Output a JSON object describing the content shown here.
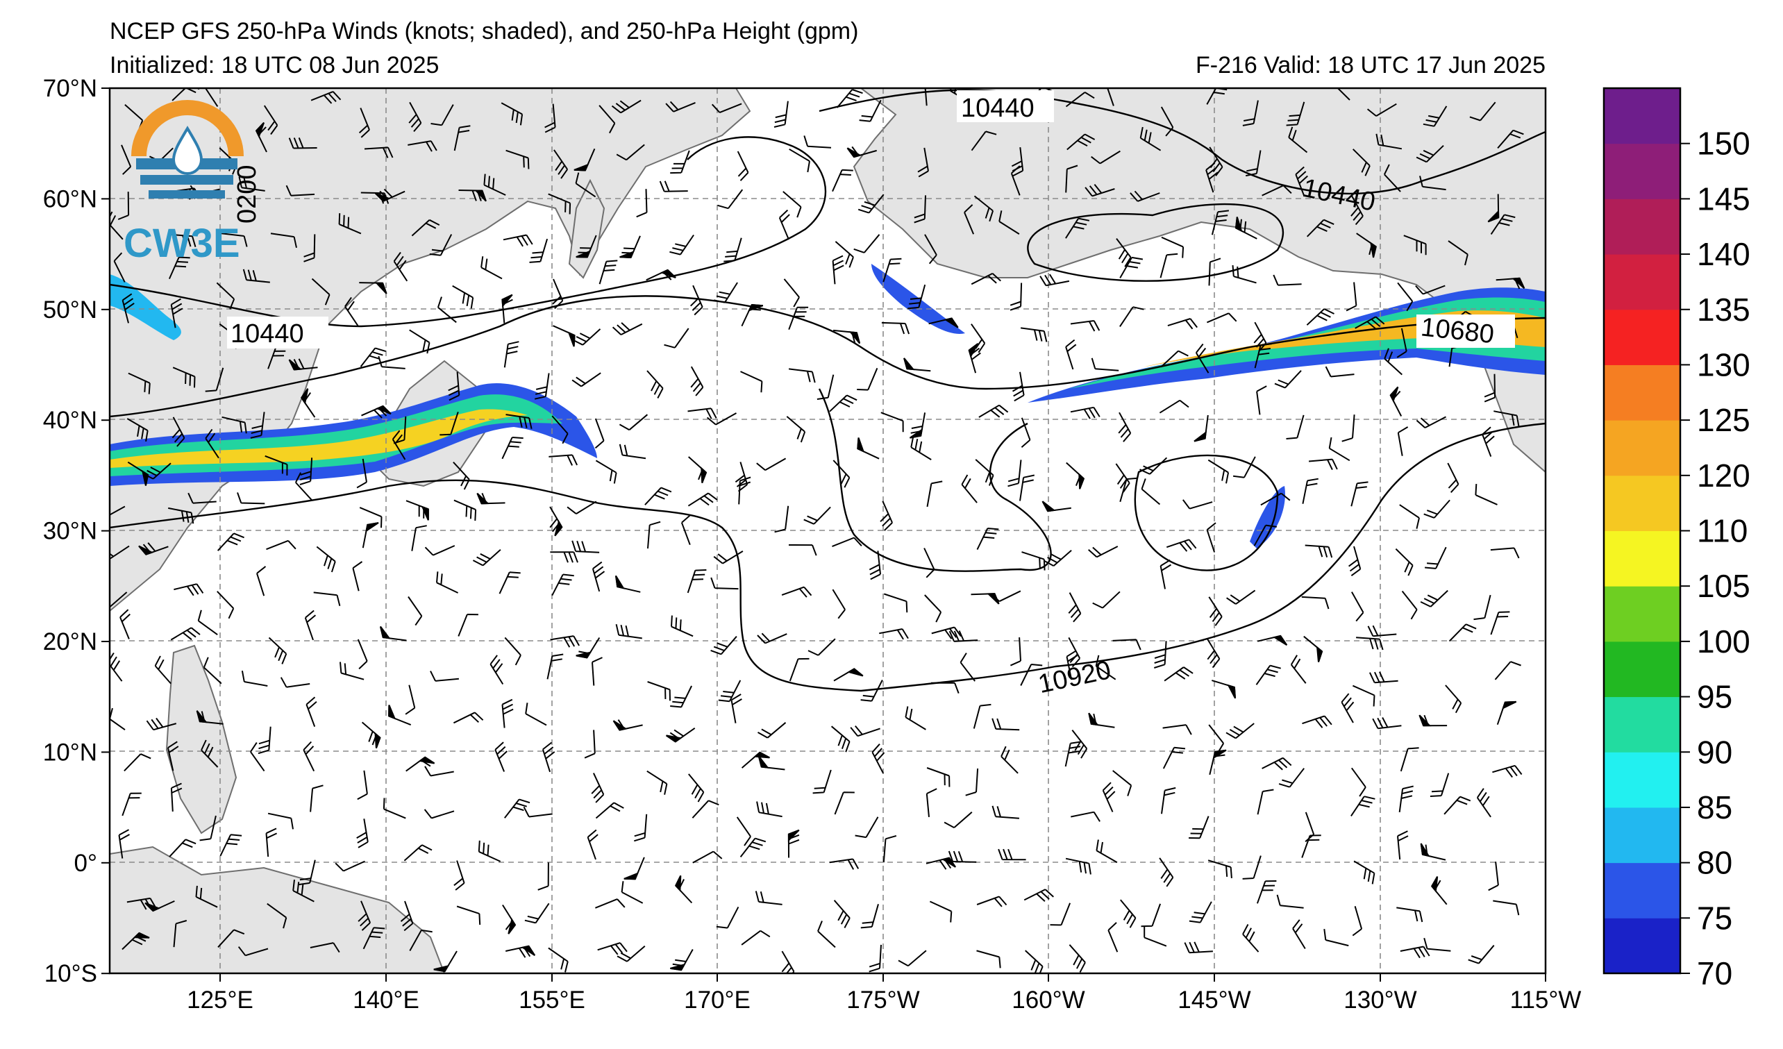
{
  "header": {
    "title_line1": "NCEP GFS 250-hPa Winds (knots; shaded), and 250-hPa Height (gpm)",
    "init_line": "Initialized: 18 UTC 08 Jun 2025",
    "valid_line": "F-216  Valid: 18 UTC 17 Jun 2025"
  },
  "logo": {
    "text": "CW3E",
    "colors": {
      "orange": "#f0992b",
      "blue": "#2f7fb0",
      "teal": "#2f98c8"
    }
  },
  "map": {
    "lat_ticks": [
      "70°N",
      "60°N",
      "50°N",
      "40°N",
      "30°N",
      "20°N",
      "10°N",
      "0°",
      "10°S"
    ],
    "lon_ticks": [
      "125°E",
      "140°E",
      "155°E",
      "170°E",
      "175°W",
      "160°W",
      "145°W",
      "130°W",
      "115°W"
    ],
    "land_color": "#e4e4e4",
    "coast_color": "#6e6e6e",
    "contour_labels": [
      {
        "id": "c1",
        "text": "10440"
      },
      {
        "id": "c2",
        "text": "10440"
      },
      {
        "id": "c3",
        "text": "10440"
      },
      {
        "id": "c4",
        "text": "10680"
      },
      {
        "id": "c5",
        "text": "10920"
      },
      {
        "id": "c6",
        "text": "0200"
      }
    ]
  },
  "colorbar": {
    "ticks": [
      "70",
      "75",
      "80",
      "85",
      "90",
      "95",
      "100",
      "105",
      "110",
      "120",
      "125",
      "130",
      "135",
      "140",
      "145",
      "150"
    ],
    "colors": [
      "#1a22c8",
      "#2b55e8",
      "#22b8f0",
      "#22f0f0",
      "#22dca0",
      "#22b822",
      "#6ecf22",
      "#f5f522",
      "#f5c822",
      "#f5a522",
      "#f57e22",
      "#f52222",
      "#d22040",
      "#b01e58",
      "#8e1e78",
      "#6e1e8c"
    ]
  }
}
